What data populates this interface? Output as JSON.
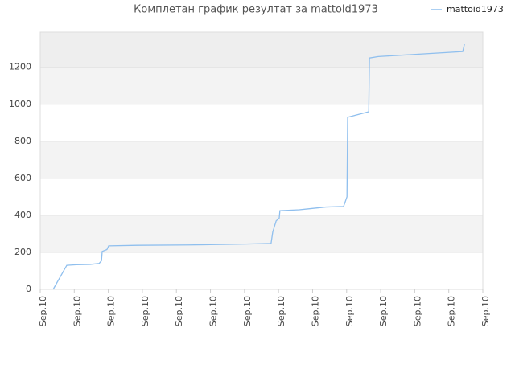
{
  "chart_data": {
    "type": "line",
    "title": "Комплетан график резултат за mattoid1973",
    "x": [
      0.38,
      0.78,
      1.06,
      1.47,
      1.73,
      1.8,
      1.82,
      1.96,
      2.01,
      2.84,
      4.37,
      6.03,
      6.78,
      6.83,
      6.93,
      7.02,
      7.04,
      7.61,
      8.39,
      8.91,
      9.01,
      9.03,
      9.65,
      9.67,
      9.93,
      12.41,
      12.46
    ],
    "series": [
      {
        "name": "mattoid1973",
        "color": "#8fbfee",
        "values": [
          0,
          130,
          133,
          135,
          140,
          155,
          205,
          215,
          235,
          238,
          240,
          245,
          248,
          310,
          370,
          385,
          425,
          430,
          445,
          448,
          500,
          930,
          960,
          1250,
          1258,
          1285,
          1325
        ]
      }
    ],
    "xlim": [
      0,
      13
    ],
    "xticks": [
      {
        "value": 0,
        "label": "Sep.10"
      },
      {
        "value": 1,
        "label": "Sep.10"
      },
      {
        "value": 2,
        "label": "Sep.10"
      },
      {
        "value": 3,
        "label": "Sep.10"
      },
      {
        "value": 4,
        "label": "Sep.10"
      },
      {
        "value": 5,
        "label": "Sep.10"
      },
      {
        "value": 6,
        "label": "Sep.10"
      },
      {
        "value": 7,
        "label": "Sep.10"
      },
      {
        "value": 8,
        "label": "Sep.10"
      },
      {
        "value": 9,
        "label": "Sep.10"
      },
      {
        "value": 10,
        "label": "Sep.10"
      },
      {
        "value": 11,
        "label": "Sep.10"
      },
      {
        "value": 12,
        "label": "Sep.10"
      },
      {
        "value": 13,
        "label": "Sep.10"
      }
    ],
    "ylim": [
      0,
      1390
    ],
    "yticks": [
      0,
      200,
      400,
      600,
      800,
      1000,
      1200
    ],
    "grid": true,
    "legend": "top-right"
  }
}
